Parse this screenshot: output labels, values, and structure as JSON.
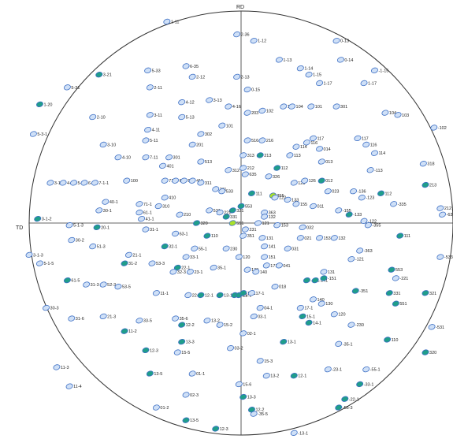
{
  "chart_data": {
    "type": "scatter",
    "projection": "stereographic pole figure",
    "title": "",
    "axis_labels": {
      "top": "RD",
      "left": "TD"
    },
    "colors": {
      "circle": "#333333",
      "axes": "#333333",
      "spot_outline": "#3d6fc4",
      "spot_fill": "#cfe0f7",
      "spot_teal": "#1f9e8a",
      "spot_green": "#a9e12a",
      "label": "#222222"
    },
    "points": [
      {
        "label": "1-11",
        "x": -0.35,
        "y": 0.95
      },
      {
        "label": "2-36",
        "x": -0.02,
        "y": 0.89
      },
      {
        "label": "1-12",
        "x": 0.06,
        "y": 0.86
      },
      {
        "label": "0-13",
        "x": 0.45,
        "y": 0.86
      },
      {
        "label": "3-21",
        "x": -0.67,
        "y": 0.7
      },
      {
        "label": "5-33",
        "x": -0.44,
        "y": 0.72
      },
      {
        "label": "6-35",
        "x": -0.26,
        "y": 0.74
      },
      {
        "label": "2-12",
        "x": -0.23,
        "y": 0.69
      },
      {
        "label": "2-13",
        "x": -0.02,
        "y": 0.69
      },
      {
        "label": "1-13",
        "x": 0.18,
        "y": 0.77
      },
      {
        "label": "1-14",
        "x": 0.28,
        "y": 0.73
      },
      {
        "label": "1-15",
        "x": 0.32,
        "y": 0.7
      },
      {
        "label": "1-17",
        "x": 0.37,
        "y": 0.66
      },
      {
        "label": "0-14",
        "x": 0.47,
        "y": 0.77
      },
      {
        "label": "-1-15",
        "x": 0.63,
        "y": 0.72
      },
      {
        "label": "1-17",
        "x": 0.58,
        "y": 0.66
      },
      {
        "label": "5-31",
        "x": -0.82,
        "y": 0.64
      },
      {
        "label": "2-11",
        "x": -0.43,
        "y": 0.64
      },
      {
        "label": "0-15",
        "x": 0.03,
        "y": 0.63
      },
      {
        "label": "1-20",
        "x": -0.95,
        "y": 0.56
      },
      {
        "label": "4-12",
        "x": -0.28,
        "y": 0.57
      },
      {
        "label": "3-13",
        "x": -0.15,
        "y": 0.58
      },
      {
        "label": "4-16",
        "x": -0.06,
        "y": 0.55
      },
      {
        "label": "101",
        "x": 0.33,
        "y": 0.55
      },
      {
        "label": "2-10",
        "x": -0.7,
        "y": 0.5
      },
      {
        "label": "3-11",
        "x": -0.43,
        "y": 0.51
      },
      {
        "label": "5-13",
        "x": -0.28,
        "y": 0.5
      },
      {
        "label": "101",
        "x": -0.09,
        "y": 0.46
      },
      {
        "label": "203",
        "x": 0.03,
        "y": 0.52
      },
      {
        "label": "102",
        "x": 0.1,
        "y": 0.53
      },
      {
        "label": "103",
        "x": 0.2,
        "y": 0.55
      },
      {
        "label": "104",
        "x": 0.24,
        "y": 0.55
      },
      {
        "label": "301",
        "x": 0.45,
        "y": 0.55
      },
      {
        "label": "104",
        "x": 0.68,
        "y": 0.52
      },
      {
        "label": "103",
        "x": 0.74,
        "y": 0.51
      },
      {
        "label": "-102",
        "x": 0.91,
        "y": 0.45
      },
      {
        "label": "5-3-1",
        "x": -0.98,
        "y": 0.42
      },
      {
        "label": "4-11",
        "x": -0.44,
        "y": 0.44
      },
      {
        "label": "5-11",
        "x": -0.45,
        "y": 0.39
      },
      {
        "label": "302",
        "x": -0.19,
        "y": 0.42
      },
      {
        "label": "201",
        "x": -0.23,
        "y": 0.37
      },
      {
        "label": "516",
        "x": 0.03,
        "y": 0.39
      },
      {
        "label": "216",
        "x": 0.1,
        "y": 0.39
      },
      {
        "label": "117",
        "x": 0.34,
        "y": 0.4
      },
      {
        "label": "116",
        "x": 0.31,
        "y": 0.38
      },
      {
        "label": "114",
        "x": 0.26,
        "y": 0.36
      },
      {
        "label": "014",
        "x": 0.37,
        "y": 0.35
      },
      {
        "label": "117",
        "x": 0.55,
        "y": 0.4
      },
      {
        "label": "116",
        "x": 0.59,
        "y": 0.37
      },
      {
        "label": "114",
        "x": 0.63,
        "y": 0.33
      },
      {
        "label": "3-10",
        "x": -0.65,
        "y": 0.37
      },
      {
        "label": "4-10",
        "x": -0.58,
        "y": 0.31
      },
      {
        "label": "7-11",
        "x": -0.45,
        "y": 0.31
      },
      {
        "label": "301",
        "x": -0.34,
        "y": 0.31
      },
      {
        "label": "401",
        "x": -0.37,
        "y": 0.27
      },
      {
        "label": "513",
        "x": -0.19,
        "y": 0.29
      },
      {
        "label": "313",
        "x": 0.01,
        "y": 0.32
      },
      {
        "label": "213",
        "x": 0.09,
        "y": 0.32
      },
      {
        "label": "113",
        "x": 0.23,
        "y": 0.32
      },
      {
        "label": "013",
        "x": 0.38,
        "y": 0.29
      },
      {
        "label": "312",
        "x": -0.06,
        "y": 0.25
      },
      {
        "label": "212",
        "x": 0.01,
        "y": 0.26
      },
      {
        "label": "112",
        "x": 0.17,
        "y": 0.26
      },
      {
        "label": "635",
        "x": 0.02,
        "y": 0.23
      },
      {
        "label": "326",
        "x": 0.13,
        "y": 0.22
      },
      {
        "label": "012",
        "x": 0.38,
        "y": 0.2
      },
      {
        "label": "-113",
        "x": 0.61,
        "y": 0.25
      },
      {
        "label": "318",
        "x": 0.86,
        "y": 0.28
      },
      {
        "label": "3-1-1",
        "x": -0.9,
        "y": 0.19
      },
      {
        "label": "4-1-1",
        "x": -0.84,
        "y": 0.19
      },
      {
        "label": "5-1-1",
        "x": -0.79,
        "y": 0.19
      },
      {
        "label": "6-1-1",
        "x": -0.74,
        "y": 0.19
      },
      {
        "label": "7-1-1",
        "x": -0.69,
        "y": 0.19
      },
      {
        "label": "100",
        "x": -0.54,
        "y": 0.2
      },
      {
        "label": "711",
        "x": -0.36,
        "y": 0.2
      },
      {
        "label": "611",
        "x": -0.31,
        "y": 0.2
      },
      {
        "label": "511",
        "x": -0.27,
        "y": 0.2
      },
      {
        "label": "411",
        "x": -0.23,
        "y": 0.2
      },
      {
        "label": "311",
        "x": -0.19,
        "y": 0.19
      },
      {
        "label": "211",
        "x": -0.12,
        "y": 0.16
      },
      {
        "label": "533",
        "x": -0.09,
        "y": 0.15
      },
      {
        "label": "123",
        "x": 0.25,
        "y": 0.19
      },
      {
        "label": "126",
        "x": 0.3,
        "y": 0.2
      },
      {
        "label": "023",
        "x": 0.41,
        "y": 0.15
      },
      {
        "label": "-136",
        "x": 0.53,
        "y": 0.15
      },
      {
        "label": "112",
        "x": 0.66,
        "y": 0.14
      },
      {
        "label": "213",
        "x": 0.87,
        "y": 0.18
      },
      {
        "label": "40-1",
        "x": -0.64,
        "y": 0.1
      },
      {
        "label": "30-1",
        "x": -0.67,
        "y": 0.06
      },
      {
        "label": "71-1",
        "x": -0.48,
        "y": 0.09
      },
      {
        "label": "61-1",
        "x": -0.48,
        "y": 0.05
      },
      {
        "label": "41-1",
        "x": -0.47,
        "y": 0.02
      },
      {
        "label": "410",
        "x": -0.36,
        "y": 0.12
      },
      {
        "label": "310",
        "x": -0.39,
        "y": 0.08
      },
      {
        "label": "210",
        "x": -0.29,
        "y": 0.04
      },
      {
        "label": "111",
        "x": 0.05,
        "y": 0.14
      },
      {
        "label": "355",
        "x": 0.15,
        "y": 0.13
      },
      {
        "label": "122",
        "x": 0.16,
        "y": 0.12
      },
      {
        "label": "133",
        "x": 0.22,
        "y": 0.11
      },
      {
        "label": "155",
        "x": 0.26,
        "y": 0.09
      },
      {
        "label": "011",
        "x": 0.34,
        "y": 0.08
      },
      {
        "label": "-123",
        "x": 0.57,
        "y": 0.12
      },
      {
        "label": "-335",
        "x": 0.72,
        "y": 0.09
      },
      {
        "label": "553",
        "x": 0.0,
        "y": 0.08
      },
      {
        "label": "321",
        "x": -0.04,
        "y": 0.06
      },
      {
        "label": "531",
        "x": -0.15,
        "y": 0.06
      },
      {
        "label": "221",
        "x": -0.1,
        "y": 0.05
      },
      {
        "label": "331",
        "x": -0.07,
        "y": 0.03
      },
      {
        "label": "363",
        "x": 0.11,
        "y": 0.05
      },
      {
        "label": "132",
        "x": 0.11,
        "y": 0.03
      },
      {
        "label": "-155",
        "x": 0.46,
        "y": 0.06
      },
      {
        "label": "-133",
        "x": 0.51,
        "y": 0.04
      },
      {
        "label": "-122",
        "x": 0.58,
        "y": 0.01
      },
      {
        "label": "-355",
        "x": 0.6,
        "y": -0.01
      },
      {
        "label": "212",
        "x": 0.94,
        "y": 0.07
      },
      {
        "label": "-636",
        "x": 0.95,
        "y": 0.04
      },
      {
        "label": "3-1-2",
        "x": -0.96,
        "y": 0.02
      },
      {
        "label": "5-1-3",
        "x": -0.81,
        "y": -0.01
      },
      {
        "label": "20-1",
        "x": -0.68,
        "y": -0.02
      },
      {
        "label": "320",
        "x": -0.21,
        "y": 0.0
      },
      {
        "label": "551",
        "x": -0.04,
        "y": 0.0
      },
      {
        "label": "121",
        "x": 0.08,
        "y": 0.0
      },
      {
        "label": "153",
        "x": 0.17,
        "y": -0.01
      },
      {
        "label": "032",
        "x": 0.29,
        "y": -0.02
      },
      {
        "label": "31-1",
        "x": -0.45,
        "y": -0.03
      },
      {
        "label": "231",
        "x": 0.02,
        "y": -0.03
      },
      {
        "label": "63-1",
        "x": -0.31,
        "y": -0.05
      },
      {
        "label": "110",
        "x": -0.16,
        "y": -0.06
      },
      {
        "label": "351",
        "x": 0.01,
        "y": -0.06
      },
      {
        "label": "131",
        "x": 0.1,
        "y": -0.07
      },
      {
        "label": "021",
        "x": 0.28,
        "y": -0.07
      },
      {
        "label": "153",
        "x": 0.37,
        "y": -0.07
      },
      {
        "label": "132",
        "x": 0.44,
        "y": -0.07
      },
      {
        "label": "111",
        "x": 0.75,
        "y": -0.06
      },
      {
        "label": "30-2",
        "x": -0.8,
        "y": -0.08
      },
      {
        "label": "51-3",
        "x": -0.7,
        "y": -0.11
      },
      {
        "label": "32-1",
        "x": -0.36,
        "y": -0.11
      },
      {
        "label": "55-1",
        "x": -0.22,
        "y": -0.12
      },
      {
        "label": "230",
        "x": -0.07,
        "y": -0.12
      },
      {
        "label": "141",
        "x": 0.11,
        "y": -0.11
      },
      {
        "label": "031",
        "x": 0.22,
        "y": -0.12
      },
      {
        "label": "-363",
        "x": 0.56,
        "y": -0.13
      },
      {
        "label": "-533",
        "x": 0.94,
        "y": -0.16
      },
      {
        "label": "3-1-3",
        "x": -1.0,
        "y": -0.15
      },
      {
        "label": "21-1",
        "x": -0.53,
        "y": -0.15
      },
      {
        "label": "33-1",
        "x": -0.26,
        "y": -0.16
      },
      {
        "label": "120",
        "x": -0.01,
        "y": -0.16
      },
      {
        "label": "151",
        "x": 0.11,
        "y": -0.16
      },
      {
        "label": "-121",
        "x": 0.52,
        "y": -0.17
      },
      {
        "label": "5-1-5",
        "x": -0.95,
        "y": -0.19
      },
      {
        "label": "31-2",
        "x": -0.55,
        "y": -0.19
      },
      {
        "label": "53-3",
        "x": -0.42,
        "y": -0.19
      },
      {
        "label": "22-1",
        "x": -0.3,
        "y": -0.21
      },
      {
        "label": "35-1",
        "x": -0.13,
        "y": -0.21
      },
      {
        "label": "130",
        "x": 0.03,
        "y": -0.22
      },
      {
        "label": "171",
        "x": 0.12,
        "y": -0.2
      },
      {
        "label": "041",
        "x": 0.18,
        "y": -0.2
      },
      {
        "label": "553",
        "x": 0.71,
        "y": -0.22
      },
      {
        "label": "-221",
        "x": 0.73,
        "y": -0.26
      },
      {
        "label": "32-3",
        "x": -0.32,
        "y": -0.23
      },
      {
        "label": "23-1",
        "x": -0.24,
        "y": -0.23
      },
      {
        "label": "140",
        "x": 0.07,
        "y": -0.23
      },
      {
        "label": "61-5",
        "x": -0.82,
        "y": -0.27
      },
      {
        "label": "31-3",
        "x": -0.73,
        "y": -0.29
      },
      {
        "label": "52-3",
        "x": -0.65,
        "y": -0.29
      },
      {
        "label": "53-5",
        "x": -0.58,
        "y": -0.3
      },
      {
        "label": "11-1",
        "x": -0.4,
        "y": -0.33
      },
      {
        "label": "131",
        "x": 0.39,
        "y": -0.23
      },
      {
        "label": "-351",
        "x": 0.54,
        "y": -0.32
      },
      {
        "label": "331",
        "x": 0.7,
        "y": -0.33
      },
      {
        "label": "321",
        "x": 0.87,
        "y": -0.33
      },
      {
        "label": "018",
        "x": 0.16,
        "y": -0.3
      },
      {
        "label": "-131",
        "x": 0.31,
        "y": -0.27
      },
      {
        "label": "-141",
        "x": 0.35,
        "y": -0.27
      },
      {
        "label": "-151",
        "x": 0.39,
        "y": -0.26
      },
      {
        "label": "22-3",
        "x": -0.25,
        "y": -0.34
      },
      {
        "label": "12-1",
        "x": -0.19,
        "y": -0.34
      },
      {
        "label": "13-1",
        "x": -0.1,
        "y": -0.34
      },
      {
        "label": "14-1",
        "x": -0.03,
        "y": -0.34
      },
      {
        "label": "15-1",
        "x": -0.01,
        "y": -0.34
      },
      {
        "label": "16-1",
        "x": 0.01,
        "y": -0.33
      },
      {
        "label": "17-1",
        "x": 0.05,
        "y": -0.33
      },
      {
        "label": "30-3",
        "x": -0.92,
        "y": -0.4
      },
      {
        "label": "31-6",
        "x": -0.8,
        "y": -0.45
      },
      {
        "label": "21-3",
        "x": -0.65,
        "y": -0.44
      },
      {
        "label": "33-5",
        "x": -0.48,
        "y": -0.46
      },
      {
        "label": "35-6",
        "x": -0.31,
        "y": -0.45
      },
      {
        "label": "12-2",
        "x": -0.28,
        "y": -0.48
      },
      {
        "label": "13-2",
        "x": -0.16,
        "y": -0.46
      },
      {
        "label": "15-2",
        "x": -0.1,
        "y": -0.48
      },
      {
        "label": "04-1",
        "x": 0.09,
        "y": -0.4
      },
      {
        "label": "03-1",
        "x": 0.06,
        "y": -0.44
      },
      {
        "label": "17-1",
        "x": 0.28,
        "y": -0.4
      },
      {
        "label": "140",
        "x": 0.34,
        "y": -0.36
      },
      {
        "label": "130",
        "x": 0.38,
        "y": -0.38
      },
      {
        "label": "15-1",
        "x": 0.29,
        "y": -0.44
      },
      {
        "label": "14-1",
        "x": 0.32,
        "y": -0.47
      },
      {
        "label": "120",
        "x": 0.44,
        "y": -0.43
      },
      {
        "label": "-230",
        "x": 0.52,
        "y": -0.48
      },
      {
        "label": "551",
        "x": 0.73,
        "y": -0.38
      },
      {
        "label": "-531",
        "x": 0.9,
        "y": -0.49
      },
      {
        "label": "11-2",
        "x": -0.55,
        "y": -0.51
      },
      {
        "label": "02-1",
        "x": 0.01,
        "y": -0.52
      },
      {
        "label": "13-3",
        "x": -0.28,
        "y": -0.56
      },
      {
        "label": "03-2",
        "x": -0.05,
        "y": -0.59
      },
      {
        "label": "13-1",
        "x": 0.2,
        "y": -0.56
      },
      {
        "label": "-35-1",
        "x": 0.46,
        "y": -0.57
      },
      {
        "label": "110",
        "x": 0.69,
        "y": -0.55
      },
      {
        "label": "12-3",
        "x": -0.45,
        "y": -0.6
      },
      {
        "label": "15-5",
        "x": -0.3,
        "y": -0.61
      },
      {
        "label": "320",
        "x": 0.87,
        "y": -0.61
      },
      {
        "label": "11-3",
        "x": -0.87,
        "y": -0.68
      },
      {
        "label": "15-3",
        "x": 0.09,
        "y": -0.65
      },
      {
        "label": "13-2",
        "x": 0.12,
        "y": -0.72
      },
      {
        "label": "12-1",
        "x": 0.25,
        "y": -0.72
      },
      {
        "label": "-23-1",
        "x": 0.41,
        "y": -0.69
      },
      {
        "label": "-55-1",
        "x": 0.59,
        "y": -0.69
      },
      {
        "label": "13-5",
        "x": -0.43,
        "y": -0.71
      },
      {
        "label": "01-1",
        "x": -0.23,
        "y": -0.71
      },
      {
        "label": "11-4",
        "x": -0.81,
        "y": -0.77
      },
      {
        "label": "15-6",
        "x": -0.01,
        "y": -0.76
      },
      {
        "label": "-33-1",
        "x": 0.56,
        "y": -0.76
      },
      {
        "label": "02-3",
        "x": -0.26,
        "y": -0.81
      },
      {
        "label": "13-3",
        "x": 0.01,
        "y": -0.82
      },
      {
        "label": "-22-1",
        "x": 0.49,
        "y": -0.83
      },
      {
        "label": "01-2",
        "x": -0.4,
        "y": -0.87
      },
      {
        "label": "12-2",
        "x": 0.05,
        "y": -0.88
      },
      {
        "label": "-35-5",
        "x": 0.06,
        "y": -0.9
      },
      {
        "label": "-55-3",
        "x": 0.46,
        "y": -0.87
      },
      {
        "label": "13-5",
        "x": -0.26,
        "y": -0.93
      },
      {
        "label": "12-3",
        "x": -0.12,
        "y": -0.97
      },
      {
        "label": "-13-1",
        "x": 0.25,
        "y": -0.99
      }
    ],
    "teal_labels": [
      "3-21",
      "3-1-2",
      "1-20",
      "20-1",
      "012",
      "112",
      "213",
      "111",
      "-133",
      "553",
      "551",
      "331",
      "321",
      "-351",
      "320",
      "110",
      "-22-1",
      "-55-3",
      "-33-1",
      "12-2",
      "12-3",
      "13-5",
      "11-2",
      "13-1",
      "14-1",
      "15-1",
      "16-1",
      "31-2",
      "61-5",
      "22-1",
      "32-1",
      "13-3",
      "12-1",
      "-131",
      "-141",
      "-151"
    ],
    "green_labels": [
      "014",
      "355",
      "551",
      "12-2"
    ]
  }
}
